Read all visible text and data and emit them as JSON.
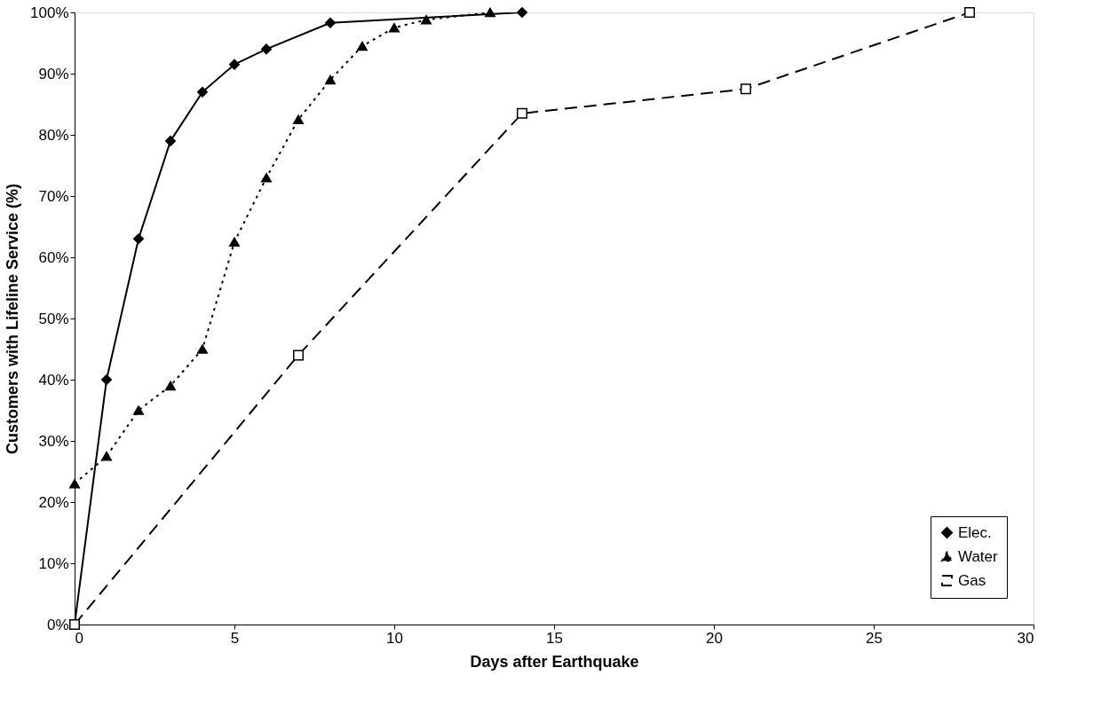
{
  "chart_data": {
    "type": "line",
    "xlabel": "Days after Earthquake",
    "ylabel": "Customers with Lifeline Service (%)",
    "xlim": [
      0,
      30
    ],
    "xticks": [
      0,
      5,
      10,
      15,
      20,
      25,
      30
    ],
    "ylim": [
      0,
      100
    ],
    "yticks": [
      {
        "value": 0,
        "label": "0%"
      },
      {
        "value": 10,
        "label": "10%"
      },
      {
        "value": 20,
        "label": "20%"
      },
      {
        "value": 30,
        "label": "30%"
      },
      {
        "value": 40,
        "label": "40%"
      },
      {
        "value": 50,
        "label": "50%"
      },
      {
        "value": 60,
        "label": "60%"
      },
      {
        "value": 70,
        "label": "70%"
      },
      {
        "value": 80,
        "label": "80%"
      },
      {
        "value": 90,
        "label": "90%"
      },
      {
        "value": 100,
        "label": "100%"
      }
    ],
    "grid": false,
    "legend": "bottom right",
    "series": [
      {
        "name": "Elec.",
        "color": "#000000",
        "marker": "diamond",
        "line_style": "solid",
        "x": [
          0,
          1,
          2,
          3,
          4,
          5,
          6,
          8,
          14
        ],
        "values": [
          0,
          40,
          63,
          79,
          87,
          91.5,
          94,
          98.3,
          100
        ]
      },
      {
        "name": "Water",
        "color": "#000000",
        "marker": "triangle",
        "line_style": "dotted",
        "x": [
          0,
          1,
          2,
          3,
          4,
          5,
          6,
          7,
          8,
          9,
          10,
          11,
          13
        ],
        "values": [
          23,
          27.5,
          35,
          39,
          45,
          62.5,
          73,
          82.5,
          89,
          94.5,
          97.5,
          98.8,
          100
        ]
      },
      {
        "name": "Gas",
        "color": "#000000",
        "marker": "square",
        "line_style": "dashed",
        "x": [
          0,
          7,
          14,
          21,
          28
        ],
        "values": [
          0,
          44,
          83.5,
          87.5,
          100
        ]
      }
    ]
  }
}
